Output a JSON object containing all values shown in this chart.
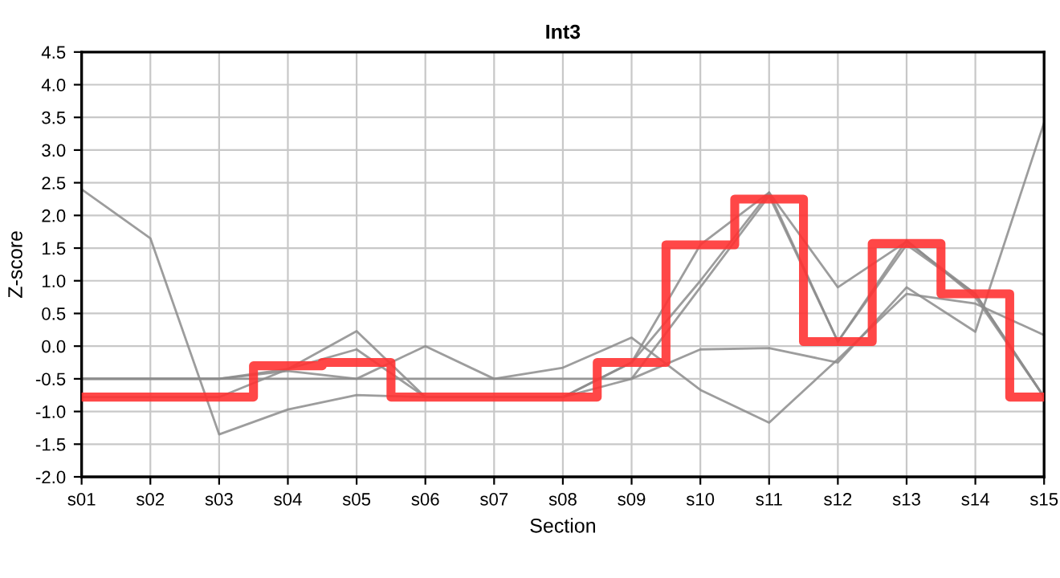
{
  "chart_data": {
    "type": "line",
    "title": "Int3",
    "xlabel": "Section",
    "ylabel": "Z-score",
    "categories": [
      "s01",
      "s02",
      "s03",
      "s04",
      "s05",
      "s06",
      "s07",
      "s08",
      "s09",
      "s10",
      "s11",
      "s12",
      "s13",
      "s14",
      "s15"
    ],
    "ylim": [
      -2.0,
      4.5
    ],
    "yticks": [
      {
        "value": -2.0,
        "label": "-2.0"
      },
      {
        "value": -1.5,
        "label": "-1.5"
      },
      {
        "value": -1.0,
        "label": "-1.0"
      },
      {
        "value": -0.5,
        "label": "-0.5"
      },
      {
        "value": 0.0,
        "label": "0.0"
      },
      {
        "value": 0.5,
        "label": "0.5"
      },
      {
        "value": 1.0,
        "label": "1.0"
      },
      {
        "value": 1.5,
        "label": "1.5"
      },
      {
        "value": 2.0,
        "label": "2.0"
      },
      {
        "value": 2.5,
        "label": "2.5"
      },
      {
        "value": 3.0,
        "label": "3.0"
      },
      {
        "value": 3.5,
        "label": "3.5"
      },
      {
        "value": 4.0,
        "label": "4.0"
      },
      {
        "value": 4.5,
        "label": "4.5"
      }
    ],
    "grid": true,
    "legend": false,
    "series": [
      {
        "color": "#8c8c8c",
        "values": [
          2.4,
          1.65,
          -1.35,
          -0.97,
          -0.75,
          -0.78,
          -0.78,
          -0.78,
          -0.5,
          -0.05,
          -0.03,
          -0.25,
          0.9,
          0.22,
          3.42
        ]
      },
      {
        "color": "#8c8c8c",
        "values": [
          -0.5,
          -0.5,
          -0.5,
          -0.38,
          -0.5,
          0.0,
          -0.5,
          -0.33,
          0.13,
          -0.67,
          -1.17,
          -0.2,
          0.8,
          0.65,
          0.17
        ]
      },
      {
        "color": "#8c8c8c",
        "values": [
          -0.5,
          -0.5,
          -0.5,
          -0.35,
          0.23,
          -0.78,
          -0.78,
          -0.78,
          -0.25,
          1.55,
          2.35,
          0.9,
          1.6,
          0.8,
          -0.78
        ]
      },
      {
        "color": "#8c8c8c",
        "values": [
          -0.78,
          -0.78,
          -0.78,
          -0.35,
          -0.05,
          -0.78,
          -0.78,
          -0.78,
          -0.25,
          1.0,
          2.35,
          0.07,
          1.62,
          0.75,
          -0.78
        ]
      },
      {
        "color": "#8c8c8c",
        "values": [
          -0.5,
          -0.5,
          -0.5,
          -0.5,
          -0.5,
          -0.5,
          -0.5,
          -0.5,
          -0.5,
          0.9,
          2.3,
          0.07,
          1.55,
          0.8,
          -0.78
        ]
      },
      {
        "type": "step",
        "color": "#ff3333",
        "values": [
          -0.78,
          -0.78,
          -0.78,
          -0.3,
          -0.25,
          -0.78,
          -0.78,
          -0.78,
          -0.25,
          1.55,
          2.25,
          0.07,
          1.57,
          0.8,
          -0.78
        ]
      }
    ]
  }
}
